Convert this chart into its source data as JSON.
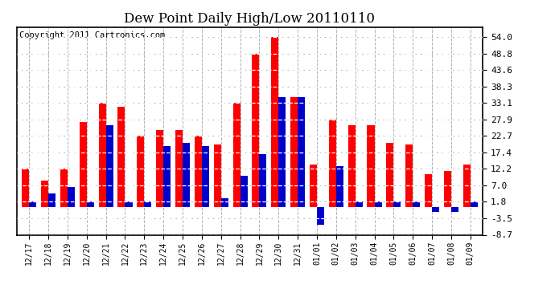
{
  "title": "Dew Point Daily High/Low 20110110",
  "copyright": "Copyright 2011 Cartronics.com",
  "dates": [
    "12/17",
    "12/18",
    "12/19",
    "12/20",
    "12/21",
    "12/22",
    "12/23",
    "12/24",
    "12/25",
    "12/26",
    "12/27",
    "12/28",
    "12/29",
    "12/30",
    "12/31",
    "01/01",
    "01/02",
    "01/03",
    "01/04",
    "01/05",
    "01/06",
    "01/07",
    "01/08",
    "01/09"
  ],
  "highs": [
    12.2,
    8.5,
    12.2,
    27.0,
    33.1,
    32.0,
    22.7,
    24.5,
    24.5,
    22.7,
    20.0,
    33.1,
    48.8,
    54.0,
    35.0,
    13.5,
    27.9,
    26.0,
    26.0,
    20.5,
    20.0,
    10.5,
    11.5,
    13.5
  ],
  "lows": [
    1.8,
    4.5,
    6.5,
    1.8,
    26.0,
    1.8,
    1.8,
    19.5,
    20.5,
    19.5,
    3.0,
    10.0,
    17.0,
    35.0,
    35.0,
    -5.5,
    13.0,
    1.8,
    1.8,
    1.8,
    1.8,
    -1.5,
    -1.5,
    1.8
  ],
  "ylim_min": -8.7,
  "ylim_max": 57.2,
  "yticks": [
    54.0,
    48.8,
    43.6,
    38.3,
    33.1,
    27.9,
    22.7,
    17.4,
    12.2,
    7.0,
    1.8,
    -3.5,
    -8.7
  ],
  "bar_width": 0.38,
  "high_color": "#ff0000",
  "low_color": "#0000cc",
  "bg_color": "#ffffff",
  "grid_color": "#b0b0b0",
  "title_fontsize": 12,
  "copyright_fontsize": 7.5
}
